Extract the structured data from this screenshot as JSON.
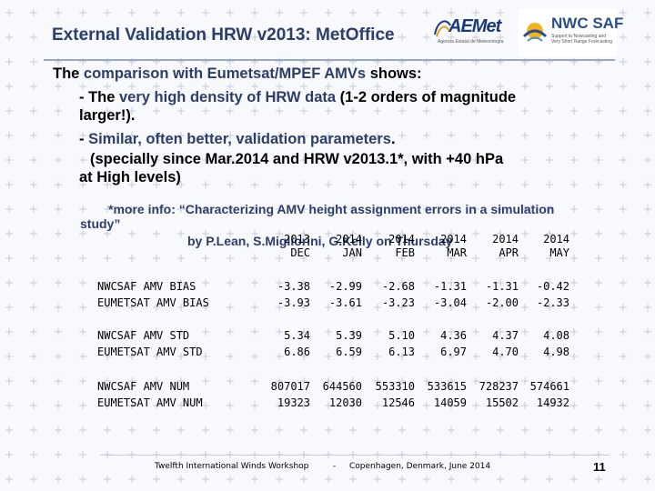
{
  "title": "External Validation HRW v2013: MetOffice",
  "logos": {
    "aemet": {
      "name": "AEMet",
      "sub": "Agencia Estatal de Meteorología"
    },
    "nwc": {
      "name": "NWC SAF",
      "sub": "Support to Nowcasting and Very Short Range Forecasting"
    }
  },
  "body": {
    "line1_a": "The ",
    "line1_b": "comparison with Eumetsat/MPEF AMVs",
    "line1_c": " shows:",
    "line2_a": "- The ",
    "line2_b": "very high density of HRW data",
    "line2_c": " (1-2 orders of magnitude",
    "line3": "larger!).",
    "line4_a": "- ",
    "line4_b": "Similar, often better, validation parameters",
    "line4_c": ".",
    "line5": "(specially since Mar.2014 and HRW v2013.1*, with +40 hPa",
    "line6": "at High levels)"
  },
  "note": {
    "line1": "*more info: “Characterizing AMV height assignment errors in a simulation",
    "line2": "study”",
    "line3": "by P.Lean, S.Migliorini, G.Kelly on Thursday"
  },
  "table": {
    "columns": [
      {
        "top": "2013",
        "bottom": "DEC"
      },
      {
        "top": "2014",
        "bottom": "JAN"
      },
      {
        "top": "2014",
        "bottom": "FEB"
      },
      {
        "top": "2014",
        "bottom": "MAR"
      },
      {
        "top": "2014",
        "bottom": "APR"
      },
      {
        "top": "2014",
        "bottom": "MAY"
      }
    ],
    "rows": [
      {
        "label": "NWCSAF AMV BIAS",
        "values": [
          "-3.38",
          "-2.99",
          "-2.68",
          "-1.31",
          "-1.31",
          "-0.42"
        ]
      },
      {
        "label": "EUMETSAT AMV BIAS",
        "values": [
          "-3.93",
          "-3.61",
          "-3.23",
          "-3.04",
          "-2.00",
          "-2.33"
        ]
      },
      {
        "label": "NWCSAF AMV STD",
        "values": [
          "5.34",
          "5.39",
          "5.10",
          "4.36",
          "4.37",
          "4.08"
        ]
      },
      {
        "label": "EUMETSAT AMV STD",
        "values": [
          "6.86",
          "6.59",
          "6.13",
          "6.97",
          "4.70",
          "4.98"
        ]
      },
      {
        "label": "NWCSAF AMV NUM",
        "values": [
          "807017",
          "644560",
          "553310",
          "533615",
          "728237",
          "574661"
        ]
      },
      {
        "label": "EUMETSAT AMV NUM",
        "values": [
          "19323",
          "12030",
          "12546",
          "14059",
          "15502",
          "14932"
        ]
      }
    ]
  },
  "footer": {
    "workshop": "Twelfth International Winds Workshop",
    "sep": "-",
    "place": "Copenhagen, Denmark, June 2014",
    "page": "11"
  },
  "colors": {
    "title": "#2d3d6b",
    "highlight": "#2d3d6b",
    "background": "#f7f9fc"
  }
}
